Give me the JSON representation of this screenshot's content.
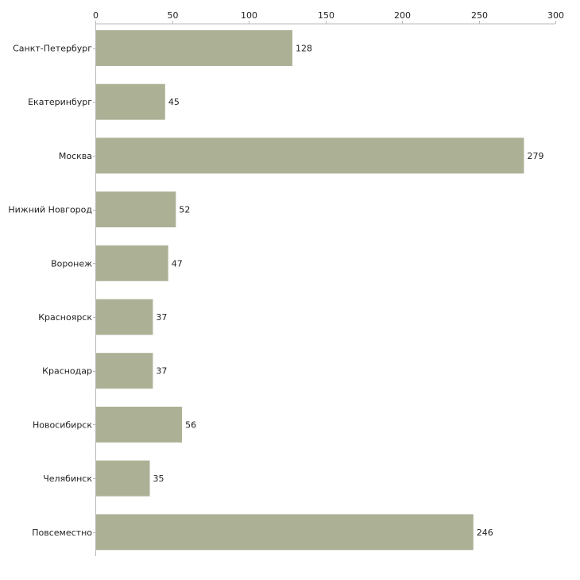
{
  "chart_data": {
    "type": "bar",
    "orientation": "horizontal",
    "categories": [
      "Санкт-Петербург",
      "Екатеринбург",
      "Москва",
      "Нижний Новгород",
      "Воронеж",
      "Красноярск",
      "Краснодар",
      "Новосибирск",
      "Челябинск",
      "Повсеместно"
    ],
    "values": [
      128,
      45,
      279,
      52,
      47,
      37,
      37,
      56,
      35,
      246
    ],
    "xlim": [
      0,
      300
    ],
    "x_ticks": [
      0,
      50,
      100,
      150,
      200,
      250,
      300
    ],
    "x_axis_position": "top",
    "grid": false,
    "title": "",
    "xlabel": "",
    "ylabel": "",
    "bar_color": "#acb196",
    "data_labels": true
  }
}
